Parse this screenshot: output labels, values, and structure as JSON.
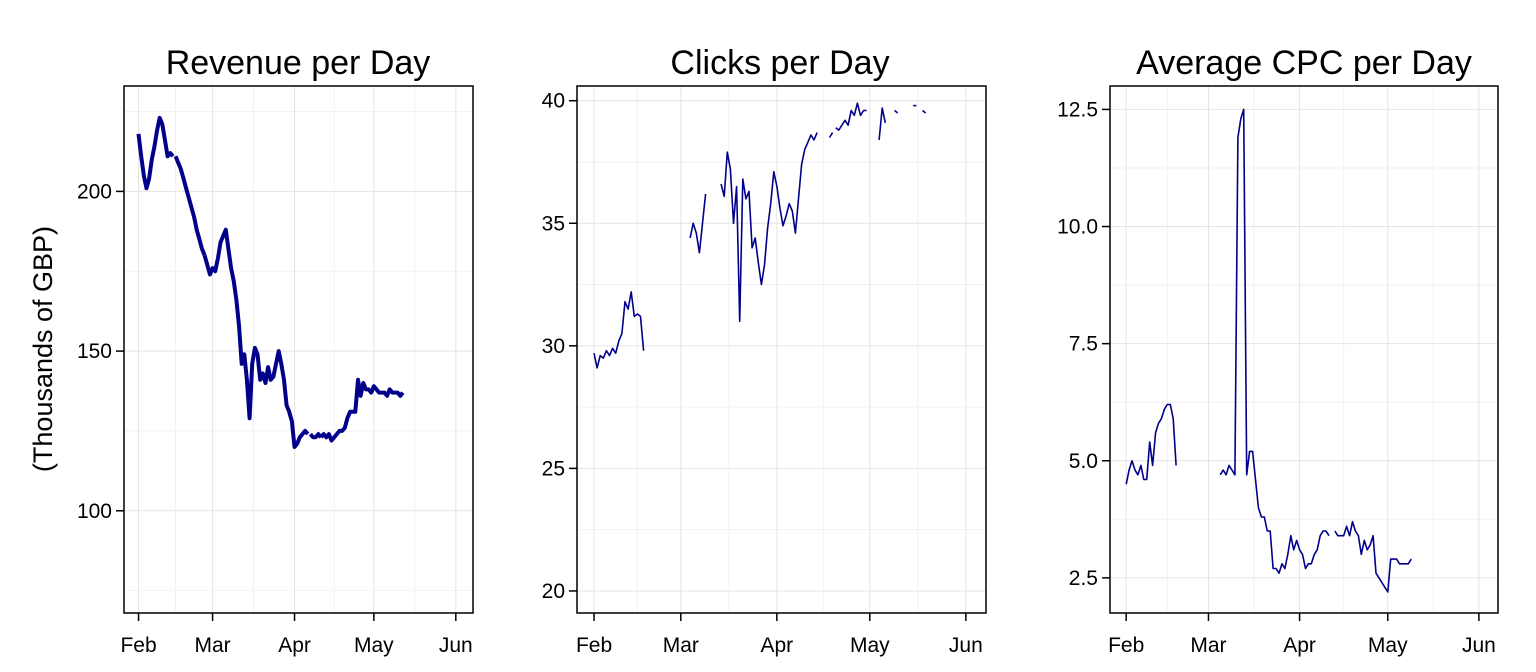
{
  "chart_data": [
    {
      "type": "line",
      "title": "Revenue per Day",
      "ylabel": "(Thousands of GBP)",
      "xlabel": "",
      "x_ticks": [
        "Feb",
        "Mar",
        "Apr",
        "May",
        "Jun"
      ],
      "y_ticks": [
        100,
        150,
        200
      ],
      "ylim": [
        68,
        233
      ],
      "grid": true,
      "color": "#00008B",
      "line_weight": "thick",
      "series": [
        {
          "points": [
            [
              1,
              218
            ],
            [
              2,
              211
            ],
            [
              3,
              205
            ],
            [
              4,
              201
            ],
            [
              5,
              204
            ],
            [
              6,
              210
            ],
            [
              7,
              214
            ],
            [
              8,
              219
            ],
            [
              9,
              223
            ],
            [
              10,
              221
            ],
            [
              11,
              216
            ],
            [
              12,
              211
            ],
            [
              13,
              212
            ],
            [
              14,
              211
            ]
          ]
        },
        {
          "points": [
            [
              15,
              211
            ],
            [
              16,
              209
            ],
            [
              17,
              207
            ],
            [
              18,
              204
            ],
            [
              19,
              201
            ],
            [
              20,
              198
            ],
            [
              21,
              195
            ],
            [
              22,
              192
            ],
            [
              23,
              188
            ],
            [
              24,
              185
            ],
            [
              25,
              182
            ],
            [
              26,
              180
            ]
          ]
        },
        {
          "points": [
            [
              26,
              180
            ],
            [
              27,
              177
            ],
            [
              28,
              174
            ],
            [
              29,
              176
            ],
            [
              30,
              175
            ],
            [
              31,
              179
            ],
            [
              32,
              184
            ],
            [
              33,
              186
            ],
            [
              34,
              188
            ],
            [
              35,
              182
            ],
            [
              36,
              176
            ],
            [
              37,
              172
            ],
            [
              38,
              166
            ],
            [
              39,
              158
            ],
            [
              40,
              146
            ],
            [
              41,
              149
            ],
            [
              42,
              141
            ],
            [
              43,
              129
            ],
            [
              44,
              146
            ],
            [
              45,
              151
            ],
            [
              46,
              149
            ],
            [
              47,
              141
            ],
            [
              48,
              143
            ],
            [
              49,
              140
            ],
            [
              50,
              145
            ],
            [
              51,
              141
            ],
            [
              52,
              142
            ],
            [
              53,
              146
            ],
            [
              54,
              150
            ],
            [
              55,
              146
            ],
            [
              56,
              141
            ],
            [
              57,
              133
            ],
            [
              58,
              131
            ],
            [
              59,
              128
            ],
            [
              60,
              120
            ],
            [
              61,
              121
            ],
            [
              62,
              123
            ],
            [
              63,
              124
            ],
            [
              64,
              125
            ],
            [
              65,
              124
            ]
          ]
        },
        {
          "points": [
            [
              66,
              124
            ],
            [
              67,
              123
            ],
            [
              68,
              123
            ],
            [
              69,
              124
            ],
            [
              70,
              123
            ]
          ]
        },
        {
          "points": [
            [
              70,
              123
            ],
            [
              71,
              124
            ],
            [
              72,
              123
            ],
            [
              73,
              124
            ],
            [
              74,
              122
            ],
            [
              75,
              123
            ],
            [
              76,
              124
            ],
            [
              77,
              125
            ],
            [
              78,
              125
            ],
            [
              79,
              126
            ],
            [
              80,
              129
            ],
            [
              81,
              131
            ],
            [
              82,
              131
            ],
            [
              83,
              131
            ],
            [
              84,
              141
            ],
            [
              85,
              136
            ],
            [
              86,
              140
            ],
            [
              87,
              138
            ],
            [
              88,
              138
            ],
            [
              89,
              137
            ],
            [
              90,
              139
            ],
            [
              91,
              138
            ],
            [
              92,
              137
            ],
            [
              93,
              137
            ],
            [
              94,
              137
            ],
            [
              95,
              136
            ],
            [
              96,
              138
            ],
            [
              97,
              137
            ],
            [
              98,
              137
            ],
            [
              99,
              137
            ],
            [
              100,
              136
            ],
            [
              101,
              137
            ]
          ]
        }
      ]
    },
    {
      "type": "line",
      "title": "Clicks per Day",
      "xlabel": "",
      "ylabel": "",
      "x_ticks": [
        "Feb",
        "Mar",
        "Apr",
        "May",
        "Jun"
      ],
      "y_ticks": [
        20,
        25,
        30,
        35,
        40
      ],
      "ylim": [
        19.1,
        40.6
      ],
      "grid": true,
      "color": "#00008B",
      "line_weight": "thin",
      "series": [
        {
          "points": [
            [
              1,
              29.7
            ],
            [
              2,
              29.1
            ],
            [
              3,
              29.6
            ],
            [
              4,
              29.5
            ],
            [
              5,
              29.8
            ],
            [
              6,
              29.6
            ],
            [
              7,
              29.9
            ],
            [
              8,
              29.7
            ],
            [
              9,
              30.2
            ],
            [
              10,
              30.5
            ],
            [
              11,
              31.8
            ],
            [
              12,
              31.5
            ],
            [
              13,
              32.2
            ],
            [
              14,
              31.2
            ],
            [
              15,
              31.3
            ],
            [
              16,
              31.2
            ],
            [
              17,
              29.8
            ]
          ]
        },
        {
          "points": [
            [
              32,
              34.4
            ],
            [
              33,
              35.0
            ],
            [
              34,
              34.6
            ],
            [
              35,
              33.8
            ],
            [
              36,
              35.0
            ],
            [
              37,
              36.2
            ]
          ]
        },
        {
          "points": [
            [
              42,
              36.6
            ],
            [
              43,
              36.1
            ],
            [
              44,
              37.9
            ],
            [
              45,
              37.2
            ],
            [
              46,
              35.0
            ],
            [
              47,
              36.5
            ],
            [
              48,
              31.0
            ],
            [
              49,
              36.8
            ],
            [
              50,
              36.0
            ],
            [
              51,
              36.3
            ],
            [
              52,
              34.0
            ],
            [
              53,
              34.4
            ],
            [
              54,
              33.4
            ],
            [
              55,
              32.5
            ],
            [
              56,
              33.3
            ],
            [
              57,
              34.8
            ],
            [
              58,
              35.8
            ],
            [
              59,
              37.1
            ],
            [
              60,
              36.5
            ],
            [
              61,
              35.6
            ],
            [
              62,
              34.9
            ],
            [
              63,
              35.3
            ],
            [
              64,
              35.8
            ],
            [
              65,
              35.5
            ],
            [
              66,
              34.6
            ],
            [
              67,
              36.0
            ],
            [
              68,
              37.4
            ],
            [
              69,
              38.0
            ],
            [
              70,
              38.3
            ],
            [
              71,
              38.6
            ],
            [
              72,
              38.4
            ],
            [
              73,
              38.7
            ]
          ]
        },
        {
          "points": [
            [
              77,
              38.5
            ],
            [
              78,
              38.7
            ]
          ]
        },
        {
          "points": [
            [
              79,
              38.9
            ],
            [
              80,
              38.8
            ],
            [
              81,
              39.0
            ],
            [
              82,
              39.2
            ],
            [
              83,
              39.0
            ],
            [
              84,
              39.6
            ],
            [
              85,
              39.4
            ],
            [
              86,
              39.9
            ],
            [
              87,
              39.4
            ],
            [
              88,
              39.6
            ],
            [
              89,
              39.6
            ]
          ]
        },
        {
          "points": [
            [
              93,
              38.4
            ],
            [
              94,
              39.7
            ],
            [
              95,
              39.1
            ]
          ]
        },
        {
          "points": [
            [
              98,
              39.6
            ],
            [
              99,
              39.5
            ]
          ]
        },
        {
          "points": [
            [
              104,
              39.8
            ],
            [
              105,
              39.8
            ]
          ]
        },
        {
          "points": [
            [
              107,
              39.6
            ],
            [
              108,
              39.5
            ]
          ]
        }
      ]
    },
    {
      "type": "line",
      "title": "Average CPC per Day",
      "xlabel": "",
      "ylabel": "",
      "x_ticks": [
        "Feb",
        "Mar",
        "Apr",
        "May",
        "Jun"
      ],
      "y_ticks": [
        2.5,
        5.0,
        7.5,
        10.0,
        12.5
      ],
      "ylim": [
        1.75,
        13.0
      ],
      "grid": true,
      "color": "#00008B",
      "line_weight": "thin",
      "series": [
        {
          "points": [
            [
              1,
              4.5
            ],
            [
              2,
              4.8
            ],
            [
              3,
              5.0
            ],
            [
              4,
              4.8
            ],
            [
              5,
              4.7
            ],
            [
              6,
              4.9
            ],
            [
              7,
              4.6
            ],
            [
              8,
              4.6
            ],
            [
              9,
              5.4
            ],
            [
              10,
              4.9
            ],
            [
              11,
              5.6
            ],
            [
              12,
              5.8
            ],
            [
              13,
              5.9
            ],
            [
              14,
              6.1
            ],
            [
              15,
              6.2
            ],
            [
              16,
              6.2
            ],
            [
              17,
              5.9
            ],
            [
              18,
              4.9
            ]
          ]
        },
        {
          "points": [
            [
              33,
              4.7
            ],
            [
              34,
              4.8
            ],
            [
              35,
              4.7
            ],
            [
              36,
              4.9
            ],
            [
              37,
              4.8
            ],
            [
              38,
              4.7
            ],
            [
              39,
              11.9
            ],
            [
              40,
              12.3
            ],
            [
              41,
              12.5
            ],
            [
              42,
              4.7
            ],
            [
              43,
              5.2
            ],
            [
              44,
              5.2
            ],
            [
              45,
              4.6
            ],
            [
              46,
              4.0
            ],
            [
              47,
              3.8
            ],
            [
              48,
              3.8
            ],
            [
              49,
              3.5
            ],
            [
              50,
              3.5
            ],
            [
              51,
              2.7
            ],
            [
              52,
              2.7
            ],
            [
              53,
              2.6
            ],
            [
              54,
              2.8
            ],
            [
              55,
              2.7
            ],
            [
              56,
              3.0
            ],
            [
              57,
              3.4
            ],
            [
              58,
              3.1
            ],
            [
              59,
              3.3
            ],
            [
              60,
              3.1
            ],
            [
              61,
              3.0
            ],
            [
              62,
              2.7
            ],
            [
              63,
              2.8
            ],
            [
              64,
              2.8
            ],
            [
              65,
              3.0
            ],
            [
              66,
              3.1
            ],
            [
              67,
              3.4
            ],
            [
              68,
              3.5
            ],
            [
              69,
              3.5
            ],
            [
              70,
              3.4
            ]
          ]
        },
        {
          "points": [
            [
              72,
              3.5
            ],
            [
              73,
              3.4
            ],
            [
              74,
              3.4
            ],
            [
              75,
              3.4
            ],
            [
              76,
              3.6
            ],
            [
              77,
              3.4
            ],
            [
              78,
              3.7
            ],
            [
              79,
              3.5
            ],
            [
              80,
              3.4
            ],
            [
              81,
              3.0
            ],
            [
              82,
              3.3
            ],
            [
              83,
              3.1
            ],
            [
              84,
              3.2
            ],
            [
              85,
              3.4
            ],
            [
              86,
              2.6
            ],
            [
              87,
              2.5
            ],
            [
              88,
              2.4
            ],
            [
              89,
              2.3
            ],
            [
              90,
              2.2
            ],
            [
              91,
              2.9
            ],
            [
              92,
              2.9
            ],
            [
              93,
              2.9
            ],
            [
              94,
              2.8
            ],
            [
              95,
              2.8
            ],
            [
              96,
              2.8
            ],
            [
              97,
              2.8
            ],
            [
              98,
              2.9
            ]
          ]
        }
      ]
    }
  ]
}
